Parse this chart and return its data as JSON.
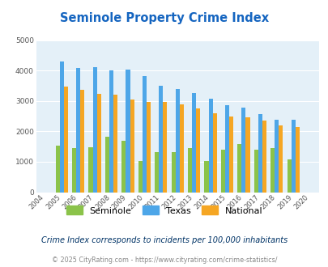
{
  "title": "Seminole Property Crime Index",
  "years": [
    "2004",
    "2005",
    "2006",
    "2007",
    "2008",
    "2009",
    "2010",
    "2011",
    "2012",
    "2013",
    "2014",
    "2015",
    "2016",
    "2017",
    "2018",
    "2019",
    "2020"
  ],
  "seminole": [
    0,
    1520,
    1450,
    1490,
    1830,
    1700,
    1020,
    1310,
    1310,
    1450,
    1020,
    1390,
    1580,
    1390,
    1450,
    1080,
    0
  ],
  "texas": [
    0,
    4300,
    4080,
    4100,
    4000,
    4030,
    3810,
    3490,
    3380,
    3260,
    3060,
    2850,
    2780,
    2580,
    2390,
    2390,
    0
  ],
  "national": [
    0,
    3460,
    3370,
    3240,
    3210,
    3050,
    2960,
    2960,
    2900,
    2760,
    2600,
    2490,
    2460,
    2360,
    2200,
    2140,
    0
  ],
  "bar_color_seminole": "#8bc34a",
  "bar_color_texas": "#4da6e8",
  "bar_color_national": "#f5a623",
  "title_color": "#1565c0",
  "background_color": "#e4f0f8",
  "ylim": [
    0,
    5000
  ],
  "yticks": [
    0,
    1000,
    2000,
    3000,
    4000,
    5000
  ],
  "subtitle": "Crime Index corresponds to incidents per 100,000 inhabitants",
  "footer": "© 2025 CityRating.com - https://www.cityrating.com/crime-statistics/",
  "legend_labels": [
    "Seminole",
    "Texas",
    "National"
  ],
  "bar_width": 0.25,
  "subtitle_color": "#003366",
  "footer_color": "#888888"
}
